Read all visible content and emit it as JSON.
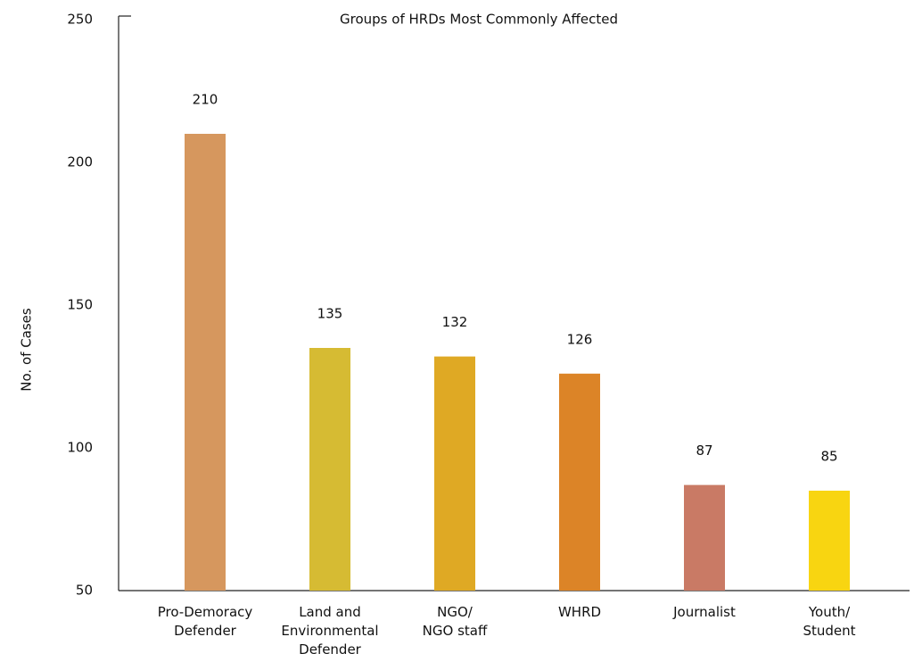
{
  "chart_data": {
    "type": "bar",
    "title": "Groups of HRDs Most Commonly Affected",
    "y_label": "No. of Cases",
    "categories": [
      "Pro-Demoracy\nDefender",
      "Land and\nEnvironmental\nDefender",
      "NGO/\nNGO staff",
      "WHRD",
      "Journalist",
      "Youth/\nStudent"
    ],
    "values": [
      210,
      135,
      132,
      126,
      87,
      85
    ],
    "colors": [
      "#d6975e",
      "#d6bb33",
      "#dfa924",
      "#dc8427",
      "#c97a65",
      "#f8d511"
    ],
    "ylim": [
      50,
      250
    ],
    "yticks": [
      50,
      100,
      150,
      200,
      250
    ],
    "grid": false
  }
}
